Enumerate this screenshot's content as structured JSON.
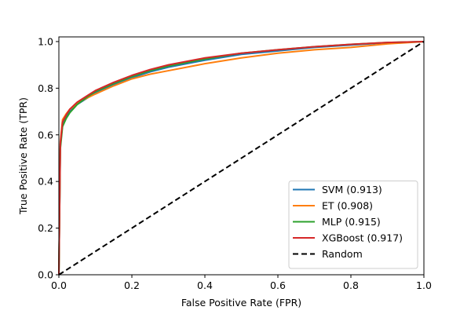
{
  "chart_data": {
    "type": "line",
    "title": "",
    "xlabel": "False Positive Rate (FPR)",
    "ylabel": "True Positive Rate (TPR)",
    "xlim": [
      0.0,
      1.0
    ],
    "ylim": [
      0.0,
      1.02
    ],
    "x_ticks": [
      0.0,
      0.2,
      0.4,
      0.6,
      0.8,
      1.0
    ],
    "x_tick_labels": [
      "0.0",
      "0.2",
      "0.4",
      "0.6",
      "0.8",
      "1.0"
    ],
    "y_ticks": [
      0.0,
      0.2,
      0.4,
      0.6,
      0.8,
      1.0
    ],
    "y_tick_labels": [
      "0.0",
      "0.2",
      "0.4",
      "0.6",
      "0.8",
      "1.0"
    ],
    "grid": false,
    "legend_position": "bottom-right",
    "series": [
      {
        "name": "SVM (0.913)",
        "color": "#1f77b4",
        "dash": "solid",
        "x": [
          0,
          0.004,
          0.01,
          0.02,
          0.03,
          0.05,
          0.08,
          0.1,
          0.15,
          0.2,
          0.25,
          0.3,
          0.4,
          0.5,
          0.6,
          0.7,
          0.8,
          0.9,
          1.0
        ],
        "y": [
          0,
          0.55,
          0.645,
          0.675,
          0.7,
          0.73,
          0.76,
          0.78,
          0.815,
          0.845,
          0.87,
          0.89,
          0.92,
          0.945,
          0.96,
          0.975,
          0.985,
          0.995,
          1.0
        ]
      },
      {
        "name": "ET (0.908)",
        "color": "#ff7f0e",
        "dash": "solid",
        "x": [
          0,
          0.004,
          0.01,
          0.02,
          0.03,
          0.05,
          0.08,
          0.1,
          0.15,
          0.2,
          0.25,
          0.3,
          0.4,
          0.5,
          0.6,
          0.7,
          0.8,
          0.9,
          1.0
        ],
        "y": [
          0,
          0.57,
          0.665,
          0.69,
          0.71,
          0.735,
          0.76,
          0.775,
          0.81,
          0.84,
          0.86,
          0.875,
          0.905,
          0.93,
          0.95,
          0.965,
          0.975,
          0.99,
          1.0
        ]
      },
      {
        "name": "MLP (0.915)",
        "color": "#2ca02c",
        "dash": "solid",
        "x": [
          0,
          0.004,
          0.01,
          0.02,
          0.03,
          0.05,
          0.08,
          0.1,
          0.15,
          0.2,
          0.25,
          0.3,
          0.4,
          0.5,
          0.6,
          0.7,
          0.8,
          0.9,
          1.0
        ],
        "y": [
          0,
          0.54,
          0.635,
          0.67,
          0.695,
          0.73,
          0.765,
          0.785,
          0.82,
          0.85,
          0.875,
          0.895,
          0.925,
          0.95,
          0.965,
          0.978,
          0.988,
          0.996,
          1.0
        ]
      },
      {
        "name": "XGBoost (0.917)",
        "color": "#d62728",
        "dash": "solid",
        "x": [
          0,
          0.004,
          0.01,
          0.02,
          0.03,
          0.05,
          0.08,
          0.1,
          0.15,
          0.2,
          0.25,
          0.3,
          0.4,
          0.5,
          0.6,
          0.7,
          0.8,
          0.9,
          1.0
        ],
        "y": [
          0,
          0.56,
          0.655,
          0.685,
          0.71,
          0.74,
          0.77,
          0.79,
          0.825,
          0.855,
          0.88,
          0.9,
          0.93,
          0.95,
          0.965,
          0.978,
          0.988,
          0.996,
          1.0
        ]
      },
      {
        "name": "Random",
        "color": "#000000",
        "dash": "dashed",
        "x": [
          0,
          1
        ],
        "y": [
          0,
          1
        ]
      }
    ]
  }
}
